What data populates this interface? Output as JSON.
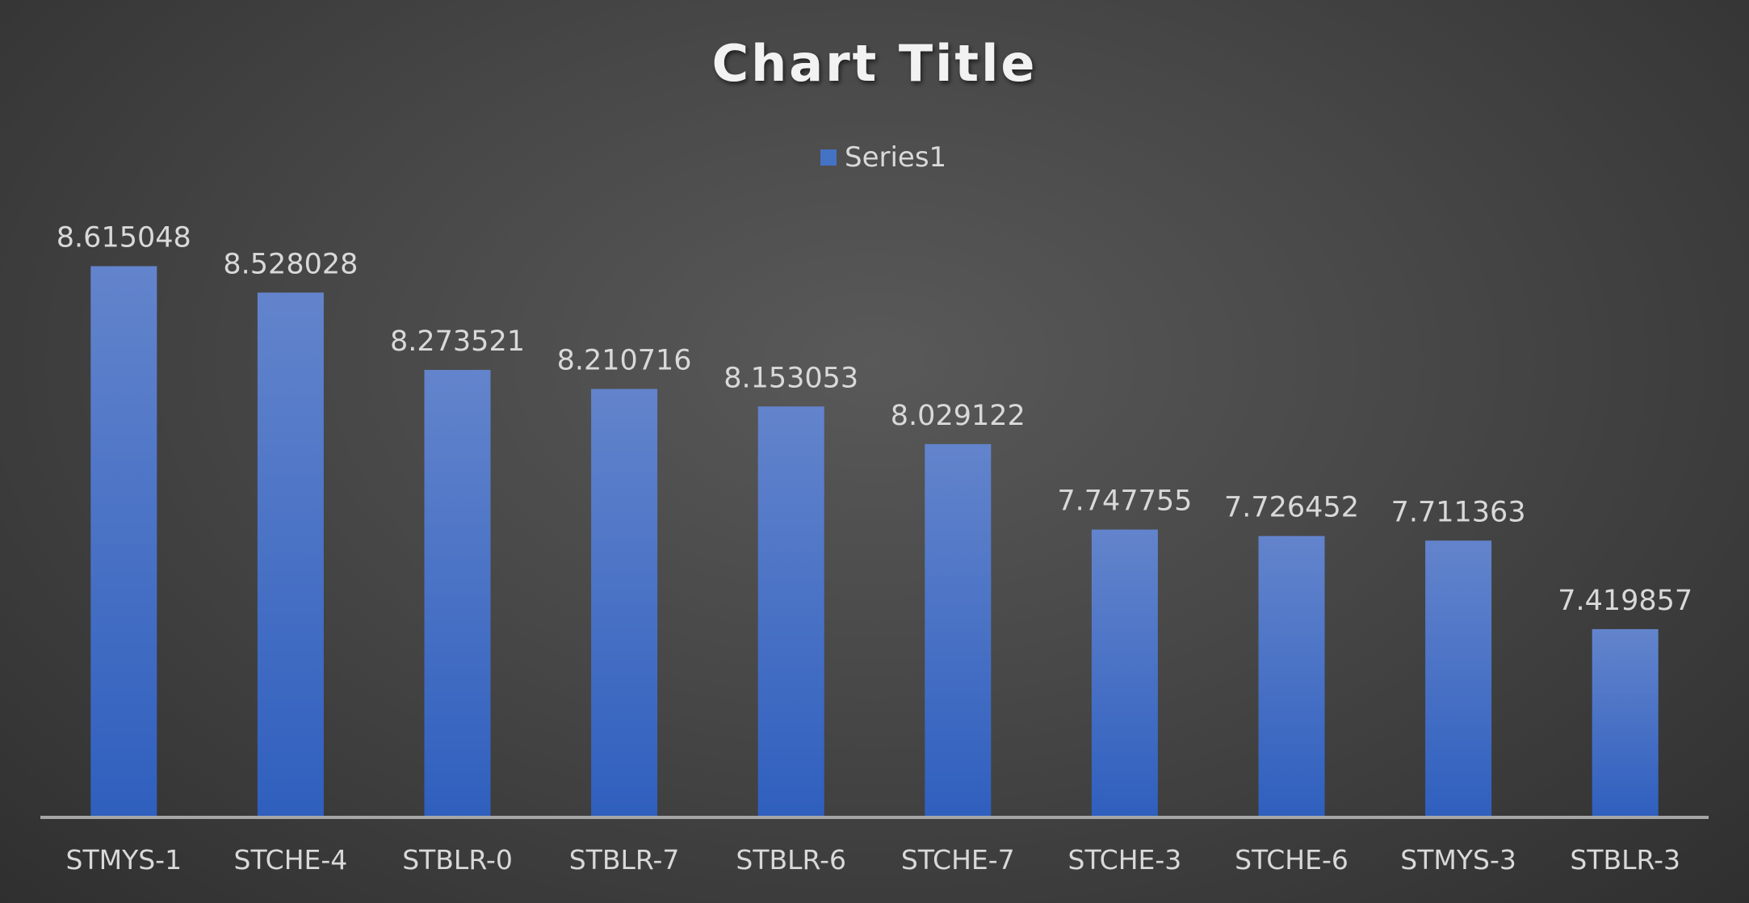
{
  "chart_data": {
    "type": "bar",
    "title": "Chart Title",
    "categories": [
      "STMYS-1",
      "STCHE-4",
      "STBLR-0",
      "STBLR-7",
      "STBLR-6",
      "STCHE-7",
      "STCHE-3",
      "STCHE-6",
      "STMYS-3",
      "STBLR-3"
    ],
    "series": [
      {
        "name": "Series1",
        "values": [
          8.615048,
          8.528028,
          8.273521,
          8.210716,
          8.153053,
          8.029122,
          7.747755,
          7.726452,
          7.711363,
          7.419857
        ],
        "labels": [
          "8.615048",
          "8.528028",
          "8.273521",
          "8.210716",
          "8.153053",
          "8.029122",
          "7.747755",
          "7.726452",
          "7.711363",
          "7.419857"
        ],
        "color": "#4472C4"
      }
    ],
    "xlabel": "",
    "ylabel": "",
    "ylim": [
      6.8,
      8.8
    ],
    "grid": false,
    "legend": "top-center",
    "colors": {
      "bar": "#4472C4",
      "background": "#404040",
      "axis": "#a6a6a6",
      "text": "#d9d9d9",
      "title": "#f2f2f2"
    }
  }
}
